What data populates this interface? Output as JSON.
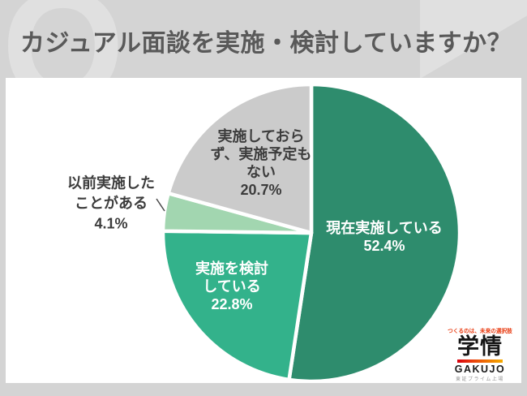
{
  "header": {
    "watermark": "Q",
    "title": "カジュアル面談を実施・検討していますか？"
  },
  "chart_data": {
    "type": "pie",
    "title": "カジュアル面談を実施・検討していますか？",
    "unit": "%",
    "start_angle_deg": 0,
    "direction": "clockwise",
    "legend": "none, labels on slices",
    "segments": [
      {
        "id": "current",
        "label": "現在実施している",
        "value": 52.4,
        "color": "#2E8C6D",
        "label_color": "#FFFFFF",
        "label_position": "inside",
        "display": "現在実施している\n52.4%"
      },
      {
        "id": "considering",
        "label": "実施を検討している",
        "value": 22.8,
        "color": "#33B28B",
        "label_color": "#FFFFFF",
        "label_position": "inside",
        "display": "実施を検討\nしている\n22.8%"
      },
      {
        "id": "previous",
        "label": "以前実施したことがある",
        "value": 4.1,
        "color": "#A2D6B0",
        "label_color": "#3C3C3C",
        "label_position": "outside",
        "display": "以前実施した\nことがある\n4.1%"
      },
      {
        "id": "none",
        "label": "実施しておらず、実施予定もない",
        "value": 20.7,
        "color": "#CBCBCB",
        "label_color": "#3C3C3C",
        "label_position": "inside",
        "display": "実施しておら\nず、実施予定も\nない\n20.7%"
      }
    ]
  },
  "logo": {
    "slogan": "つくるのは、未来の選択肢",
    "kanji": "学情",
    "name": "GAKUJO",
    "listing": "東証プライム上場",
    "accent_red": "#E8380D",
    "accent_orange": "#F6AB00"
  }
}
